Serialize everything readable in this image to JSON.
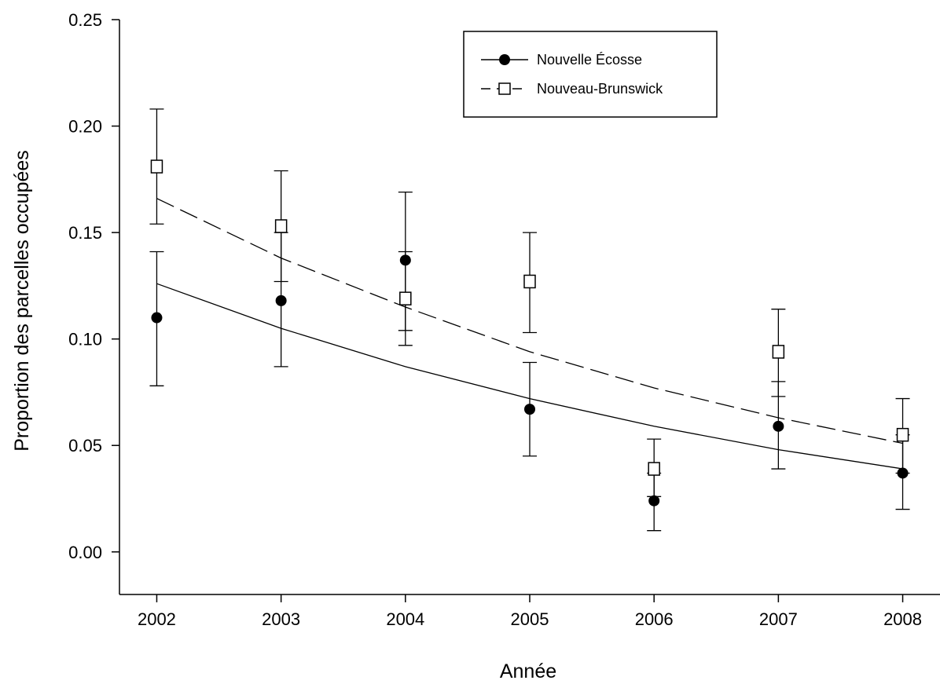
{
  "chart_data": {
    "type": "scatter",
    "xlabel": "Année",
    "ylabel": "Proportion des parcelles occupées",
    "x_ticks": [
      "2002",
      "2003",
      "2004",
      "2005",
      "2006",
      "2007",
      "2008"
    ],
    "y_ticks": [
      "0.00",
      "0.05",
      "0.10",
      "0.15",
      "0.20",
      "0.25"
    ],
    "xlim": [
      2001.7,
      2008.3
    ],
    "ylim": [
      -0.02,
      0.25
    ],
    "grid": false,
    "legend_position": "top-center",
    "series": [
      {
        "name": "Nouvelle Écosse",
        "marker": "filled-circle",
        "line_style": "solid",
        "color": "#000000",
        "points": [
          {
            "x": 2002,
            "y": 0.11,
            "err_low": 0.078,
            "err_high": 0.141
          },
          {
            "x": 2003,
            "y": 0.118,
            "err_low": 0.087,
            "err_high": 0.15
          },
          {
            "x": 2004,
            "y": 0.137,
            "err_low": 0.104,
            "err_high": 0.169
          },
          {
            "x": 2005,
            "y": 0.067,
            "err_low": 0.045,
            "err_high": 0.089
          },
          {
            "x": 2006,
            "y": 0.024,
            "err_low": 0.01,
            "err_high": 0.037
          },
          {
            "x": 2007,
            "y": 0.059,
            "err_low": 0.039,
            "err_high": 0.08
          },
          {
            "x": 2008,
            "y": 0.037,
            "err_low": 0.02,
            "err_high": 0.055
          }
        ],
        "fit": [
          {
            "x": 2002,
            "y": 0.126
          },
          {
            "x": 2003,
            "y": 0.105
          },
          {
            "x": 2004,
            "y": 0.087
          },
          {
            "x": 2005,
            "y": 0.072
          },
          {
            "x": 2006,
            "y": 0.059
          },
          {
            "x": 2007,
            "y": 0.048
          },
          {
            "x": 2008,
            "y": 0.039
          }
        ]
      },
      {
        "name": "Nouveau-Brunswick",
        "marker": "open-square",
        "line_style": "dashed",
        "color": "#000000",
        "points": [
          {
            "x": 2002,
            "y": 0.181,
            "err_low": 0.154,
            "err_high": 0.208
          },
          {
            "x": 2003,
            "y": 0.153,
            "err_low": 0.127,
            "err_high": 0.179
          },
          {
            "x": 2004,
            "y": 0.119,
            "err_low": 0.097,
            "err_high": 0.141
          },
          {
            "x": 2005,
            "y": 0.127,
            "err_low": 0.103,
            "err_high": 0.15
          },
          {
            "x": 2006,
            "y": 0.039,
            "err_low": 0.026,
            "err_high": 0.053
          },
          {
            "x": 2007,
            "y": 0.094,
            "err_low": 0.073,
            "err_high": 0.114
          },
          {
            "x": 2008,
            "y": 0.055,
            "err_low": 0.037,
            "err_high": 0.072
          }
        ],
        "fit": [
          {
            "x": 2002,
            "y": 0.166
          },
          {
            "x": 2003,
            "y": 0.138
          },
          {
            "x": 2004,
            "y": 0.115
          },
          {
            "x": 2005,
            "y": 0.094
          },
          {
            "x": 2006,
            "y": 0.077
          },
          {
            "x": 2007,
            "y": 0.063
          },
          {
            "x": 2008,
            "y": 0.051
          }
        ]
      }
    ]
  }
}
